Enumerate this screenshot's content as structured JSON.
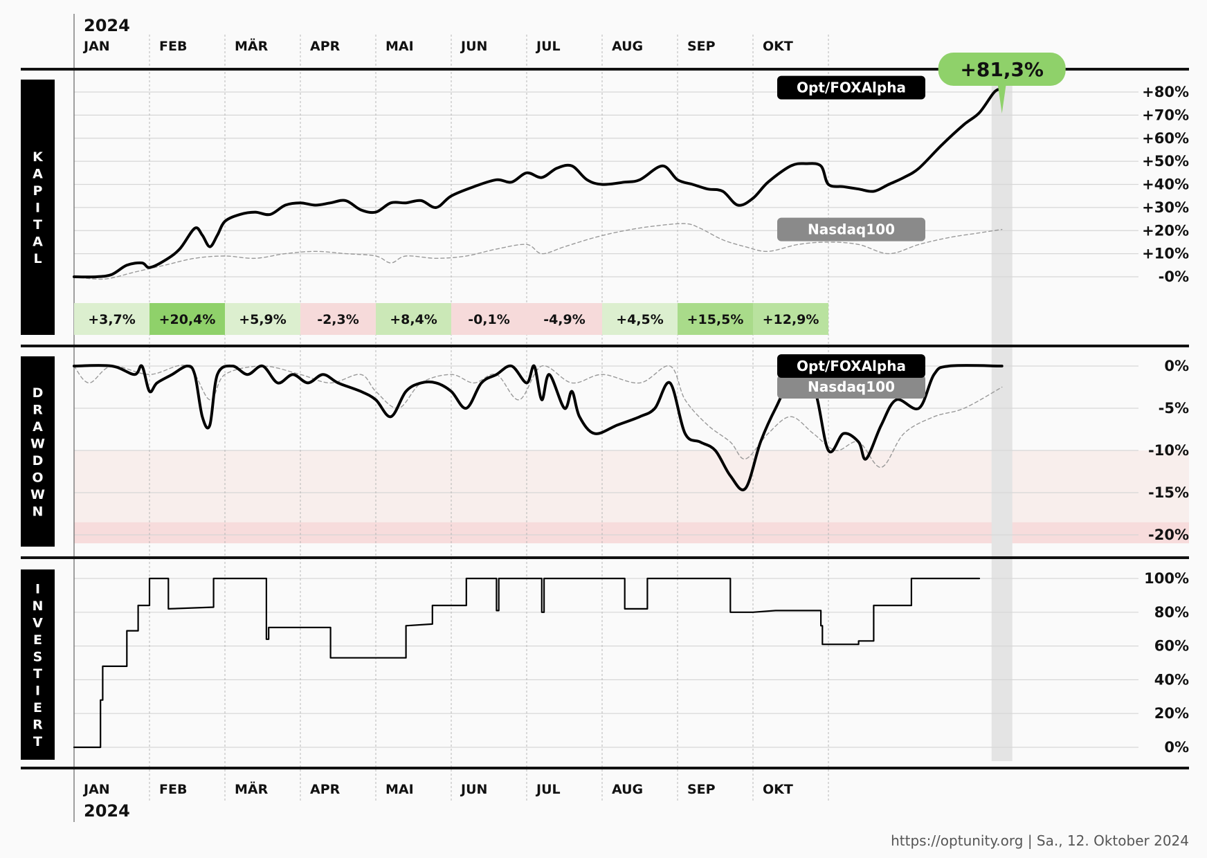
{
  "year": "2024",
  "months": [
    "JAN",
    "FEB",
    "MÄR",
    "APR",
    "MAI",
    "JUN",
    "JUL",
    "AUG",
    "SEP",
    "OKT"
  ],
  "panel_titles": {
    "kapital": "KAPITAL",
    "drawdown": "DRAWDOWN",
    "investiert": "INVESTIERT"
  },
  "final_badge": "+81,3%",
  "footer": "https://optunity.org | Sa., 12. Oktober 2024",
  "colors": {
    "strategy": "#000000",
    "benchmark": "#999999",
    "badge": "#8fd16a",
    "pos_strong": "#8fd16a",
    "pos_mid": "#b9e29f",
    "pos_light": "#dcefcf",
    "neg_light": "#f6dada",
    "drawdown_zone_light": "#f8eeec",
    "drawdown_zone_dark": "#f7dcdc",
    "today_band": "#e4e4e4"
  },
  "chart_data": [
    {
      "type": "line",
      "name": "Kapital",
      "x_unit": "month of 2024",
      "ylim": [
        -2,
        86
      ],
      "yticks": [
        "+80%",
        "+70%",
        "+60%",
        "+50%",
        "+40%",
        "+30%",
        "+20%",
        "+10%",
        "-0%"
      ],
      "ytick_values": [
        80,
        70,
        60,
        50,
        40,
        30,
        20,
        10,
        0
      ],
      "series": [
        {
          "name": "Opt/FOXAlpha",
          "color": "#000000",
          "points": [
            [
              0.0,
              0
            ],
            [
              0.3,
              0
            ],
            [
              0.5,
              1
            ],
            [
              0.7,
              5
            ],
            [
              0.9,
              6
            ],
            [
              1.0,
              4
            ],
            [
              1.2,
              7
            ],
            [
              1.4,
              12
            ],
            [
              1.6,
              21
            ],
            [
              1.7,
              18
            ],
            [
              1.8,
              13
            ],
            [
              1.9,
              18
            ],
            [
              2.0,
              24
            ],
            [
              2.2,
              27
            ],
            [
              2.4,
              28
            ],
            [
              2.6,
              27
            ],
            [
              2.8,
              31
            ],
            [
              3.0,
              32
            ],
            [
              3.2,
              31
            ],
            [
              3.4,
              32
            ],
            [
              3.6,
              33
            ],
            [
              3.8,
              29
            ],
            [
              4.0,
              28
            ],
            [
              4.2,
              32
            ],
            [
              4.4,
              32
            ],
            [
              4.6,
              33
            ],
            [
              4.8,
              30
            ],
            [
              5.0,
              35
            ],
            [
              5.3,
              39
            ],
            [
              5.6,
              42
            ],
            [
              5.8,
              41
            ],
            [
              6.0,
              45
            ],
            [
              6.2,
              43
            ],
            [
              6.4,
              47
            ],
            [
              6.6,
              48
            ],
            [
              6.8,
              42
            ],
            [
              7.0,
              40
            ],
            [
              7.3,
              41
            ],
            [
              7.5,
              42
            ],
            [
              7.8,
              48
            ],
            [
              8.0,
              42
            ],
            [
              8.2,
              40
            ],
            [
              8.4,
              38
            ],
            [
              8.6,
              37
            ],
            [
              8.8,
              31
            ],
            [
              9.0,
              34
            ],
            [
              9.2,
              41
            ],
            [
              9.5,
              48
            ],
            [
              9.7,
              49
            ],
            [
              9.9,
              48
            ],
            [
              10.0,
              40
            ],
            [
              10.2,
              39
            ],
            [
              10.4,
              38
            ],
            [
              10.6,
              37
            ],
            [
              10.8,
              40
            ],
            [
              11.0,
              43
            ],
            [
              11.2,
              47
            ],
            [
              11.5,
              57
            ],
            [
              11.8,
              66
            ],
            [
              12.0,
              71
            ],
            [
              12.2,
              80
            ],
            [
              12.3,
              81.3
            ]
          ]
        },
        {
          "name": "Nasdaq100",
          "color": "#999999",
          "points": [
            [
              0.0,
              0
            ],
            [
              0.4,
              -1
            ],
            [
              0.8,
              2
            ],
            [
              1.2,
              5
            ],
            [
              1.6,
              8
            ],
            [
              2.0,
              9
            ],
            [
              2.4,
              8
            ],
            [
              2.8,
              10
            ],
            [
              3.2,
              11
            ],
            [
              3.6,
              10
            ],
            [
              4.0,
              9
            ],
            [
              4.2,
              6
            ],
            [
              4.4,
              9
            ],
            [
              4.8,
              8
            ],
            [
              5.2,
              9
            ],
            [
              5.6,
              12
            ],
            [
              6.0,
              14
            ],
            [
              6.2,
              10
            ],
            [
              6.5,
              13
            ],
            [
              6.9,
              17
            ],
            [
              7.3,
              20
            ],
            [
              7.7,
              22
            ],
            [
              8.1,
              23
            ],
            [
              8.3,
              21
            ],
            [
              8.6,
              16
            ],
            [
              8.9,
              13
            ],
            [
              9.2,
              11
            ],
            [
              9.6,
              14
            ],
            [
              10.0,
              15
            ],
            [
              10.4,
              14
            ],
            [
              10.8,
              10
            ],
            [
              11.2,
              14
            ],
            [
              11.6,
              17
            ],
            [
              12.0,
              19
            ],
            [
              12.3,
              20.5
            ]
          ]
        }
      ],
      "monthly_returns": [
        {
          "month": "JAN",
          "value": "+3,7%",
          "fill": "#dcefcf"
        },
        {
          "month": "FEB",
          "value": "+20,4%",
          "fill": "#8fd16a"
        },
        {
          "month": "MÄR",
          "value": "+5,9%",
          "fill": "#dcefcf"
        },
        {
          "month": "APR",
          "value": "-2,3%",
          "fill": "#f6dada"
        },
        {
          "month": "MAI",
          "value": "+8,4%",
          "fill": "#cbe8b7"
        },
        {
          "month": "JUN",
          "value": "-0,1%",
          "fill": "#f6dada"
        },
        {
          "month": "JUL",
          "value": "-4,9%",
          "fill": "#f6dada"
        },
        {
          "month": "AUG",
          "value": "+4,5%",
          "fill": "#dcefcf"
        },
        {
          "month": "SEP",
          "value": "+15,5%",
          "fill": "#a9db8a"
        },
        {
          "month": "OKT",
          "value": "+12,9%",
          "fill": "#b9e29f"
        }
      ],
      "labels": [
        "Opt/FOXAlpha",
        "Nasdaq100"
      ]
    },
    {
      "type": "line",
      "name": "Drawdown",
      "ylim": [
        -21,
        0
      ],
      "yticks": [
        "0%",
        "-5%",
        "-10%",
        "-15%",
        "-20%"
      ],
      "ytick_values": [
        0,
        -5,
        -10,
        -15,
        -20
      ],
      "series": [
        {
          "name": "Opt/FOXAlpha",
          "color": "#000000",
          "points": [
            [
              0.0,
              0
            ],
            [
              0.5,
              0
            ],
            [
              0.8,
              -1
            ],
            [
              0.9,
              0
            ],
            [
              1.0,
              -3
            ],
            [
              1.1,
              -2
            ],
            [
              1.3,
              -1
            ],
            [
              1.5,
              0
            ],
            [
              1.6,
              -1
            ],
            [
              1.7,
              -6
            ],
            [
              1.8,
              -7
            ],
            [
              1.9,
              -1
            ],
            [
              2.1,
              0
            ],
            [
              2.3,
              -1
            ],
            [
              2.5,
              0
            ],
            [
              2.7,
              -2
            ],
            [
              2.9,
              -1
            ],
            [
              3.1,
              -2
            ],
            [
              3.3,
              -1
            ],
            [
              3.5,
              -2
            ],
            [
              3.8,
              -3
            ],
            [
              4.0,
              -4
            ],
            [
              4.2,
              -6
            ],
            [
              4.4,
              -3
            ],
            [
              4.6,
              -2
            ],
            [
              4.8,
              -2
            ],
            [
              5.0,
              -3
            ],
            [
              5.2,
              -5
            ],
            [
              5.4,
              -2
            ],
            [
              5.6,
              -1
            ],
            [
              5.8,
              0
            ],
            [
              6.0,
              -2
            ],
            [
              6.1,
              0
            ],
            [
              6.2,
              -4
            ],
            [
              6.3,
              -1
            ],
            [
              6.5,
              -5
            ],
            [
              6.6,
              -3
            ],
            [
              6.7,
              -6
            ],
            [
              6.9,
              -8
            ],
            [
              7.2,
              -7
            ],
            [
              7.5,
              -6
            ],
            [
              7.7,
              -5
            ],
            [
              7.9,
              -2
            ],
            [
              8.1,
              -8
            ],
            [
              8.3,
              -9
            ],
            [
              8.5,
              -10
            ],
            [
              8.7,
              -13
            ],
            [
              8.9,
              -14.5
            ],
            [
              9.1,
              -9
            ],
            [
              9.3,
              -5
            ],
            [
              9.5,
              -2
            ],
            [
              9.8,
              -2.5
            ],
            [
              10.0,
              -10
            ],
            [
              10.2,
              -8
            ],
            [
              10.4,
              -9
            ],
            [
              10.5,
              -11
            ],
            [
              10.7,
              -7
            ],
            [
              10.9,
              -4
            ],
            [
              11.2,
              -5
            ],
            [
              11.4,
              -1
            ],
            [
              11.6,
              0
            ],
            [
              12.3,
              0
            ]
          ]
        },
        {
          "name": "Nasdaq100",
          "color": "#999999",
          "points": [
            [
              0.0,
              0
            ],
            [
              0.2,
              -2
            ],
            [
              0.5,
              0
            ],
            [
              1.0,
              -1
            ],
            [
              1.5,
              0
            ],
            [
              1.8,
              -4
            ],
            [
              2.0,
              -1
            ],
            [
              2.5,
              0
            ],
            [
              3.0,
              -1
            ],
            [
              3.4,
              -2
            ],
            [
              3.8,
              -1
            ],
            [
              4.0,
              -3
            ],
            [
              4.3,
              -5
            ],
            [
              4.6,
              -2
            ],
            [
              5.0,
              -1
            ],
            [
              5.3,
              -2
            ],
            [
              5.6,
              -1
            ],
            [
              5.9,
              -4
            ],
            [
              6.2,
              0
            ],
            [
              6.6,
              -2
            ],
            [
              7.0,
              -1
            ],
            [
              7.5,
              -2
            ],
            [
              7.9,
              0
            ],
            [
              8.1,
              -4
            ],
            [
              8.4,
              -7
            ],
            [
              8.7,
              -9
            ],
            [
              8.9,
              -11
            ],
            [
              9.2,
              -8
            ],
            [
              9.5,
              -6
            ],
            [
              9.8,
              -8
            ],
            [
              10.1,
              -10
            ],
            [
              10.4,
              -9
            ],
            [
              10.7,
              -12
            ],
            [
              11.0,
              -8
            ],
            [
              11.4,
              -6
            ],
            [
              11.8,
              -5
            ],
            [
              12.3,
              -2.5
            ]
          ]
        }
      ],
      "labels": [
        "Opt/FOXAlpha",
        "Nasdaq100"
      ]
    },
    {
      "type": "line",
      "name": "Investiert",
      "ylim": [
        -3,
        103
      ],
      "yticks": [
        "100%",
        "80%",
        "60%",
        "40%",
        "20%",
        "0%"
      ],
      "ytick_values": [
        100,
        80,
        60,
        40,
        20,
        0
      ],
      "series": [
        {
          "name": "Opt/FOXAlpha",
          "color": "#000000",
          "step": true,
          "points": [
            [
              0.0,
              0
            ],
            [
              0.35,
              0
            ],
            [
              0.35,
              28
            ],
            [
              0.38,
              28
            ],
            [
              0.38,
              48
            ],
            [
              0.7,
              48
            ],
            [
              0.7,
              69
            ],
            [
              0.85,
              69
            ],
            [
              0.85,
              84
            ],
            [
              1.0,
              84
            ],
            [
              1.0,
              100
            ],
            [
              1.25,
              100
            ],
            [
              1.25,
              82
            ],
            [
              1.85,
              83
            ],
            [
              1.85,
              100
            ],
            [
              2.55,
              100
            ],
            [
              2.55,
              64
            ],
            [
              2.58,
              64
            ],
            [
              2.58,
              71
            ],
            [
              3.4,
              71
            ],
            [
              3.4,
              53
            ],
            [
              4.4,
              53
            ],
            [
              4.4,
              72
            ],
            [
              4.75,
              73
            ],
            [
              4.75,
              84
            ],
            [
              5.2,
              84
            ],
            [
              5.2,
              100
            ],
            [
              5.6,
              100
            ],
            [
              5.6,
              81
            ],
            [
              5.63,
              81
            ],
            [
              5.63,
              100
            ],
            [
              6.2,
              100
            ],
            [
              6.2,
              80
            ],
            [
              6.23,
              80
            ],
            [
              6.23,
              100
            ],
            [
              7.3,
              100
            ],
            [
              7.3,
              82
            ],
            [
              7.6,
              82
            ],
            [
              7.6,
              100
            ],
            [
              8.7,
              100
            ],
            [
              8.7,
              80
            ],
            [
              9.0,
              80
            ],
            [
              9.3,
              81
            ],
            [
              9.9,
              81
            ],
            [
              9.9,
              72
            ],
            [
              9.92,
              72
            ],
            [
              9.92,
              61
            ],
            [
              10.4,
              61
            ],
            [
              10.4,
              63
            ],
            [
              10.6,
              63
            ],
            [
              10.6,
              84
            ],
            [
              11.1,
              84
            ],
            [
              11.1,
              100
            ],
            [
              12.0,
              100
            ]
          ]
        }
      ]
    }
  ]
}
